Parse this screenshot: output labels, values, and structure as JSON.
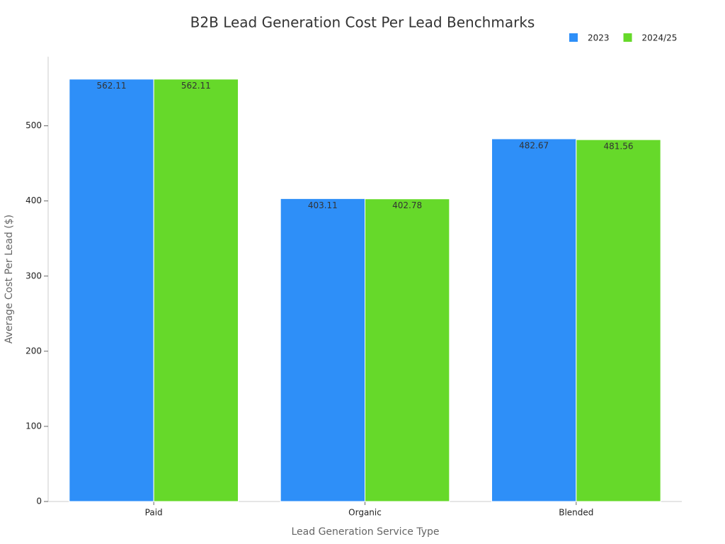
{
  "chart_data": {
    "type": "bar",
    "title": "B2B Lead Generation Cost Per Lead Benchmarks",
    "x_label": "Lead Generation Service Type",
    "y_label": "Average Cost Per Lead ($)",
    "categories": [
      "Paid",
      "Organic",
      "Blended"
    ],
    "series": [
      {
        "name": "2023",
        "color": "#2e8ff8",
        "values": [
          562.11,
          403.11,
          482.67
        ]
      },
      {
        "name": "2024/25",
        "color": "#66d92a",
        "values": [
          562.11,
          402.78,
          481.56
        ]
      }
    ],
    "ylim": [
      0,
      592
    ],
    "yticks": [
      0,
      100,
      200,
      300,
      400,
      500
    ],
    "grid": false,
    "legend": "top-right"
  }
}
